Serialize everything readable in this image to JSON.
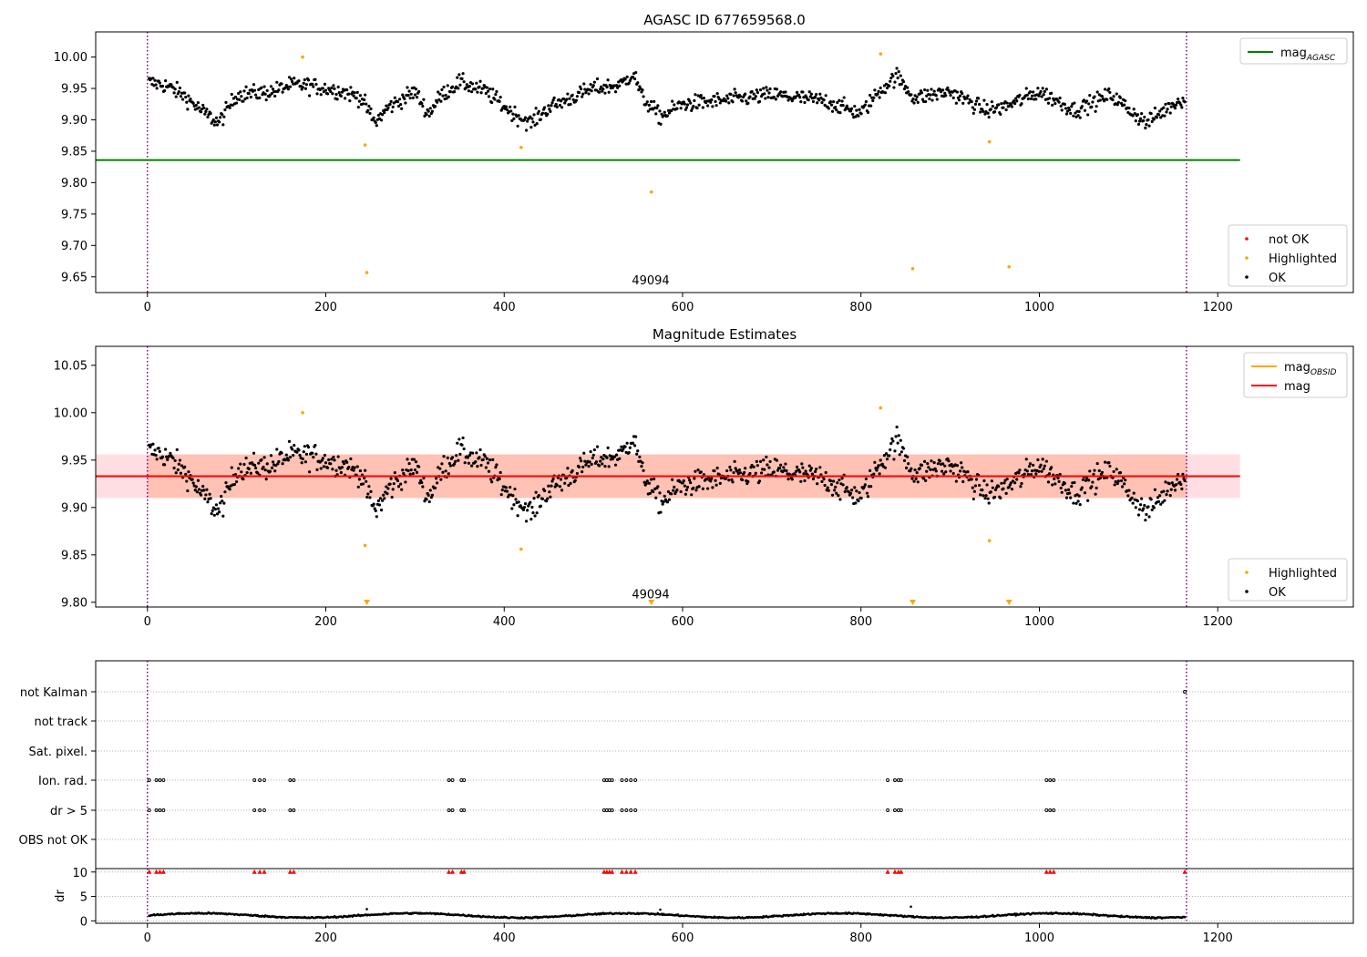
{
  "chart_data": [
    {
      "type": "scatter",
      "title": "AGASC ID 677659568.0",
      "xlim": [
        -58,
        1352
      ],
      "ylim": [
        9.625,
        10.04
      ],
      "xticks": [
        0,
        200,
        400,
        600,
        800,
        1000,
        1200
      ],
      "yticks": [
        9.65,
        9.7,
        9.75,
        9.8,
        9.85,
        9.9,
        9.95,
        10.0
      ],
      "lines": [
        {
          "name": "mag_AGASC",
          "y": 9.836,
          "x_range": [
            -58,
            1225
          ],
          "color": "#008000"
        }
      ],
      "vlines": [
        0,
        1165
      ],
      "vline_color": "#800080",
      "annotation": {
        "text": "49094",
        "x": 584,
        "y": 9.638
      },
      "highlighted_points": [
        [
          174,
          10.0
        ],
        [
          244,
          9.86
        ],
        [
          246,
          9.657
        ],
        [
          419,
          9.856
        ],
        [
          565,
          9.785
        ],
        [
          822,
          10.005
        ],
        [
          858,
          9.663
        ],
        [
          944,
          9.865
        ],
        [
          966,
          9.666
        ]
      ],
      "ok_series": {
        "x_range": [
          2,
          1163
        ],
        "n_points": 1080,
        "keypoints": [
          [
            0,
            9.96
          ],
          [
            20,
            9.955
          ],
          [
            40,
            9.94
          ],
          [
            60,
            9.915
          ],
          [
            80,
            9.895
          ],
          [
            100,
            9.94
          ],
          [
            140,
            9.945
          ],
          [
            160,
            9.955
          ],
          [
            180,
            9.955
          ],
          [
            220,
            9.945
          ],
          [
            240,
            9.935
          ],
          [
            255,
            9.895
          ],
          [
            270,
            9.92
          ],
          [
            300,
            9.945
          ],
          [
            315,
            9.91
          ],
          [
            330,
            9.94
          ],
          [
            350,
            9.96
          ],
          [
            380,
            9.945
          ],
          [
            410,
            9.91
          ],
          [
            430,
            9.895
          ],
          [
            450,
            9.92
          ],
          [
            500,
            9.95
          ],
          [
            530,
            9.955
          ],
          [
            545,
            9.975
          ],
          [
            555,
            9.935
          ],
          [
            575,
            9.905
          ],
          [
            600,
            9.925
          ],
          [
            640,
            9.93
          ],
          [
            700,
            9.94
          ],
          [
            760,
            9.93
          ],
          [
            800,
            9.91
          ],
          [
            820,
            9.945
          ],
          [
            840,
            9.97
          ],
          [
            860,
            9.935
          ],
          [
            900,
            9.945
          ],
          [
            940,
            9.915
          ],
          [
            960,
            9.92
          ],
          [
            1000,
            9.945
          ],
          [
            1040,
            9.915
          ],
          [
            1080,
            9.94
          ],
          [
            1120,
            9.895
          ],
          [
            1150,
            9.925
          ],
          [
            1163,
            9.935
          ]
        ]
      },
      "legend": {
        "placement": "top-right",
        "entries": [
          {
            "label": "mag_AGASC",
            "color": "#008000"
          }
        ]
      },
      "legend2": {
        "placement": "bottom-right",
        "entries": [
          {
            "label": "not OK",
            "color": "#ff0000"
          },
          {
            "label": "Highlighted",
            "color": "#ffa500"
          },
          {
            "label": "OK",
            "color": "#000000"
          }
        ]
      }
    },
    {
      "type": "scatter",
      "title": "Magnitude Estimates",
      "xlim": [
        -58,
        1352
      ],
      "ylim": [
        9.795,
        10.07
      ],
      "xticks": [
        0,
        200,
        400,
        600,
        800,
        1000,
        1200
      ],
      "yticks": [
        9.8,
        9.85,
        9.9,
        9.95,
        10.0,
        10.05
      ],
      "lines": [
        {
          "name": "mag",
          "y": 9.933,
          "x_range": [
            -58,
            1225
          ],
          "color": "#ff0000"
        }
      ],
      "bands": [
        {
          "y_range": [
            9.91,
            9.956
          ],
          "x_range": [
            -58,
            1225
          ],
          "color": "#ffb6c1",
          "opacity": 0.45
        },
        {
          "y_range": [
            9.91,
            9.956
          ],
          "x_range": [
            0,
            1165
          ],
          "color": "#ffa07a",
          "opacity": 0.45
        }
      ],
      "vlines": [
        0,
        1165
      ],
      "vline_color": "#800080",
      "annotation": {
        "text": "49094",
        "x": 584,
        "y": 9.804
      },
      "highlighted_points": [
        [
          174,
          10.0
        ],
        [
          244,
          9.86
        ],
        [
          419,
          9.856
        ],
        [
          822,
          10.005
        ],
        [
          944,
          9.865
        ]
      ],
      "triangle_markers_x": [
        246,
        565,
        858,
        966
      ],
      "legend": {
        "placement": "top-right",
        "entries": [
          {
            "label": "mag_OBSID",
            "color": "#ffa500"
          },
          {
            "label": "mag",
            "color": "#ff0000"
          }
        ]
      },
      "legend2": {
        "placement": "bottom-right",
        "entries": [
          {
            "label": "Highlighted",
            "color": "#ffa500"
          },
          {
            "label": "OK",
            "color": "#000000"
          }
        ]
      }
    },
    {
      "type": "scatter",
      "title": "",
      "xlim": [
        -58,
        1352
      ],
      "xticks": [
        0,
        200,
        400,
        600,
        800,
        1000,
        1200
      ],
      "flag_rows": [
        "not Kalman",
        "not track",
        "Sat. pixel.",
        "Ion. rad.",
        "dr > 5",
        "OBS not OK"
      ],
      "flag_events": {
        "Ion. rad.": [
          2,
          10,
          14,
          18,
          120,
          126,
          131,
          160,
          164,
          338,
          342,
          352,
          355,
          512,
          515,
          518,
          521,
          532,
          537,
          542,
          547,
          830,
          838,
          842,
          845,
          1008,
          1012,
          1016
        ],
        "dr > 5": [
          2,
          10,
          14,
          18,
          120,
          126,
          131,
          160,
          164,
          338,
          342,
          352,
          355,
          512,
          515,
          518,
          521,
          532,
          537,
          542,
          547,
          830,
          838,
          842,
          845,
          1008,
          1012,
          1016
        ],
        "not Kalman": [
          1163
        ]
      },
      "dr_panel": {
        "ylabel": "dr",
        "yticks": [
          0,
          5,
          10
        ],
        "ylim": [
          -0.5,
          10.7
        ],
        "clipped_marker_x": [
          2,
          10,
          14,
          18,
          120,
          126,
          131,
          160,
          164,
          338,
          342,
          352,
          355,
          512,
          515,
          518,
          521,
          532,
          537,
          542,
          547,
          830,
          838,
          842,
          845,
          1008,
          1012,
          1016,
          1163
        ],
        "series_level": 1.1,
        "outliers": [
          [
            246,
            2.4
          ],
          [
            575,
            2.3
          ],
          [
            856,
            2.9
          ]
        ]
      },
      "vlines": [
        0,
        1165
      ],
      "vline_color": "#800080"
    }
  ]
}
